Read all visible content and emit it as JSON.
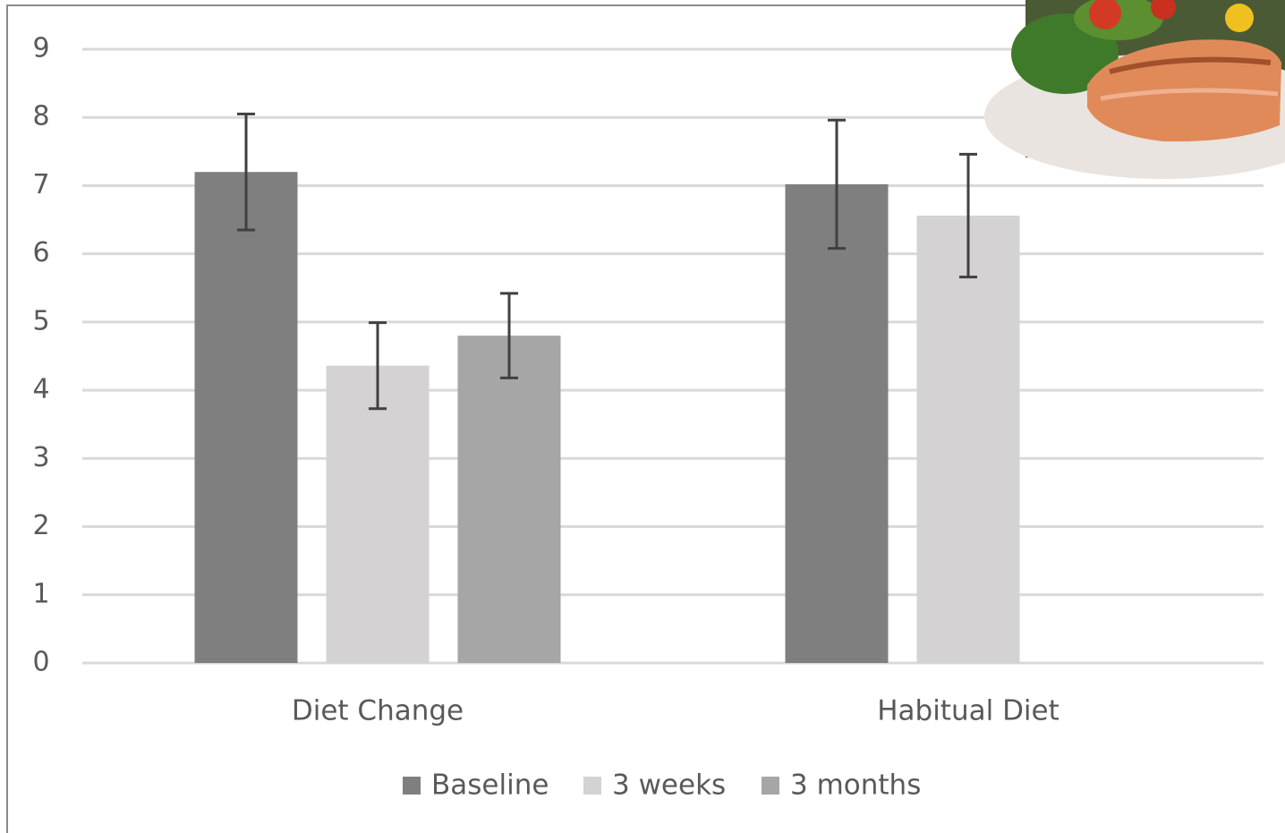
{
  "chart_data": {
    "type": "bar",
    "categories": [
      "Diet Change",
      "Habitual Diet"
    ],
    "series": [
      {
        "name": "Baseline",
        "color": "#7f7f7f",
        "values": [
          7.2,
          7.02
        ],
        "errors": [
          0.85,
          0.94
        ]
      },
      {
        "name": "3 weeks",
        "color": "#d4d2d2",
        "values": [
          4.36,
          6.56
        ],
        "errors": [
          0.63,
          0.9
        ]
      },
      {
        "name": "3 months",
        "color": "#a6a6a6",
        "values": [
          4.8,
          null
        ],
        "errors": [
          0.62,
          null
        ]
      }
    ],
    "ylim": [
      0,
      9
    ],
    "yticks": [
      0,
      1,
      2,
      3,
      4,
      5,
      6,
      7,
      8,
      9
    ],
    "grid": true,
    "legend": "bottom",
    "error_bar_color": "#404040"
  }
}
